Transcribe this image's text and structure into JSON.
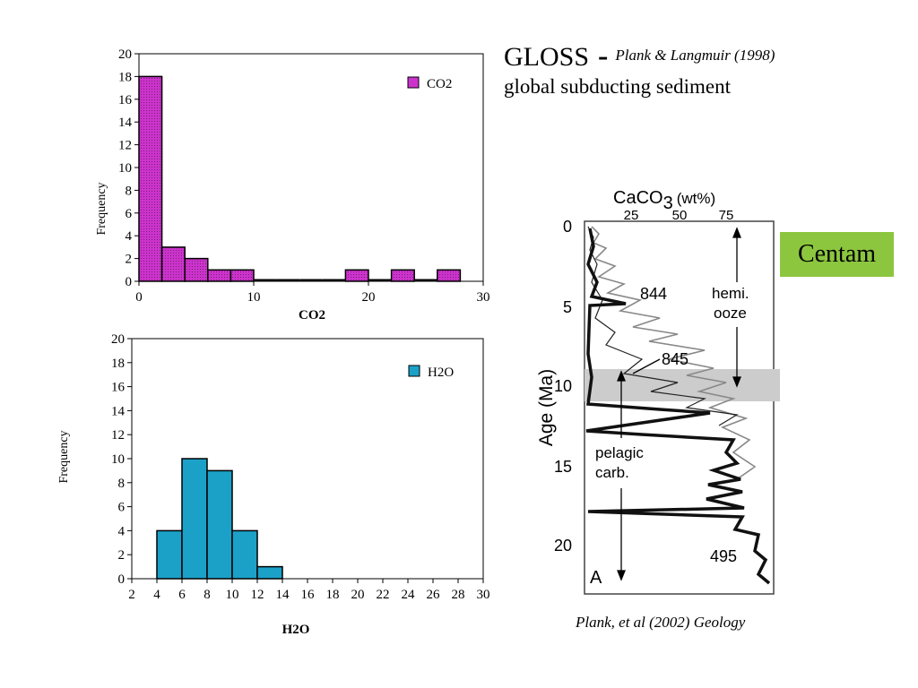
{
  "gloss": {
    "title": "GLOSS",
    "dash": "-",
    "reference": "Plank & Langmuir (1998)",
    "subtitle": "global subducting sediment"
  },
  "centam_label": "Centam",
  "core_caption": "Plank, et al (2002) Geology",
  "colors": {
    "co2_bar": "#cc33cc",
    "h2o_bar": "#1ba1c8",
    "centam_bg": "#8cc63f",
    "band": "#cccccc"
  },
  "chart_data": [
    {
      "type": "bar",
      "title": "",
      "xlabel": "CO2",
      "ylabel": "Frequency",
      "legend": {
        "label": "CO2",
        "position": "top-right"
      },
      "xlim": [
        0,
        30
      ],
      "ylim": [
        0,
        20
      ],
      "xticks": [
        0,
        10,
        20,
        30
      ],
      "yticks": [
        0,
        2,
        4,
        6,
        8,
        10,
        12,
        14,
        16,
        18,
        20
      ],
      "bins": [
        {
          "x0": 0,
          "x1": 2,
          "value": 18
        },
        {
          "x0": 2,
          "x1": 4,
          "value": 3
        },
        {
          "x0": 4,
          "x1": 6,
          "value": 2
        },
        {
          "x0": 6,
          "x1": 8,
          "value": 1
        },
        {
          "x0": 8,
          "x1": 10,
          "value": 1
        },
        {
          "x0": 10,
          "x1": 12,
          "value": 0
        },
        {
          "x0": 12,
          "x1": 14,
          "value": 0
        },
        {
          "x0": 14,
          "x1": 16,
          "value": 0
        },
        {
          "x0": 16,
          "x1": 18,
          "value": 0
        },
        {
          "x0": 18,
          "x1": 20,
          "value": 1
        },
        {
          "x0": 20,
          "x1": 22,
          "value": 0
        },
        {
          "x0": 22,
          "x1": 24,
          "value": 1
        },
        {
          "x0": 24,
          "x1": 26,
          "value": 0
        },
        {
          "x0": 26,
          "x1": 28,
          "value": 1
        }
      ],
      "grid": false
    },
    {
      "type": "bar",
      "title": "",
      "xlabel": "H2O",
      "ylabel": "Frequency",
      "legend": {
        "label": "H2O",
        "position": "top-right"
      },
      "xlim": [
        2,
        30
      ],
      "ylim": [
        0,
        20
      ],
      "xticks": [
        2,
        4,
        6,
        8,
        10,
        12,
        14,
        16,
        18,
        20,
        22,
        24,
        26,
        28,
        30
      ],
      "yticks": [
        0,
        2,
        4,
        6,
        8,
        10,
        12,
        14,
        16,
        18,
        20
      ],
      "bins": [
        {
          "x0": 4,
          "x1": 6,
          "value": 4
        },
        {
          "x0": 6,
          "x1": 8,
          "value": 10
        },
        {
          "x0": 8,
          "x1": 10,
          "value": 9
        },
        {
          "x0": 10,
          "x1": 12,
          "value": 4
        },
        {
          "x0": 12,
          "x1": 14,
          "value": 1
        }
      ],
      "grid": false
    }
  ],
  "core": {
    "x_axis_title": "CaCO",
    "x_axis_sub": "3",
    "x_axis_unit": "(wt%)",
    "x_ticks": [
      "25",
      "50",
      "75"
    ],
    "y_axis_title": "Age (Ma)",
    "y_ticks": [
      "0",
      "5",
      "10",
      "15",
      "20"
    ],
    "site_labels": [
      "844",
      "845",
      "495"
    ],
    "zone_upper": "hemi.",
    "zone_upper_2": "ooze",
    "zone_lower": "pelagic",
    "zone_lower_2": "carb.",
    "panel_letter": "A"
  }
}
